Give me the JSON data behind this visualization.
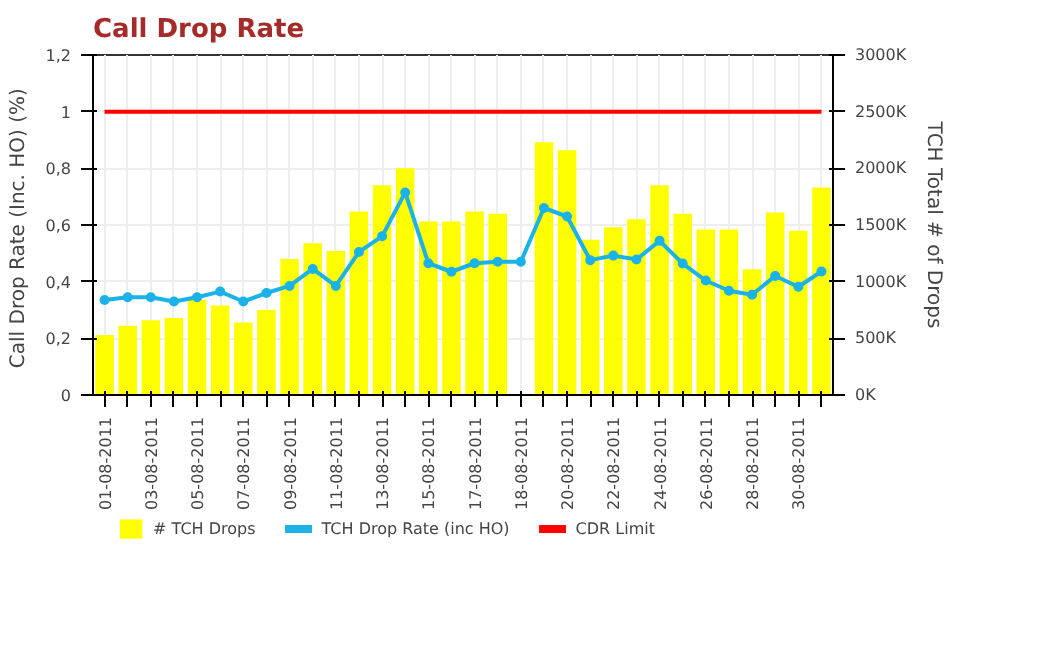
{
  "chart_data": {
    "type": "bar",
    "title": "Call Drop Rate",
    "ylabel": "Call Drop Rate (Inc. HO)  (%)",
    "y2label": "TCH Total # of Drops",
    "categories": [
      "01-08-2011",
      null,
      "03-08-2011",
      null,
      "05-08-2011",
      null,
      "07-08-2011",
      null,
      "09-08-2011",
      null,
      "11-08-2011",
      null,
      "13-08-2011",
      null,
      "15-08-2011",
      null,
      "17-08-2011",
      null,
      "18-08-2011",
      null,
      "20-08-2011",
      null,
      "22-08-2011",
      null,
      "24-08-2011",
      null,
      "26-08-2011",
      null,
      "28-08-2011",
      null,
      "30-08-2011",
      null
    ],
    "series": [
      {
        "name": "# TCH Drops",
        "axis": "y2",
        "color": "#ffff00",
        "values": [
          530,
          610,
          660,
          680,
          840,
          790,
          640,
          750,
          1200,
          1340,
          1270,
          1620,
          1850,
          2000,
          1530,
          1530,
          1620,
          1600,
          null,
          2230,
          2160,
          1370,
          1480,
          1550,
          1850,
          1600,
          1460,
          1460,
          1110,
          1610,
          1450,
          1830
        ]
      },
      {
        "name": "TCH Drop Rate (inc HO)",
        "type": "line",
        "marker": "circle",
        "color": "#1ab2e8",
        "values": [
          0.335,
          0.345,
          0.345,
          0.33,
          0.345,
          0.365,
          0.33,
          0.36,
          0.385,
          0.445,
          0.385,
          0.505,
          0.56,
          0.715,
          0.465,
          0.435,
          0.465,
          0.47,
          0.47,
          0.66,
          0.63,
          0.476,
          0.492,
          0.478,
          0.544,
          0.464,
          0.404,
          0.368,
          0.354,
          0.42,
          0.382,
          0.436
        ]
      },
      {
        "name": "CDR Limit",
        "type": "line",
        "marker": "none",
        "color": "#ff0000",
        "values": [
          1,
          1,
          1,
          1,
          1,
          1,
          1,
          1,
          1,
          1,
          1,
          1,
          1,
          1,
          1,
          1,
          1,
          1,
          1,
          1,
          1,
          1,
          1,
          1,
          1,
          1,
          1,
          1,
          1,
          1,
          1,
          1
        ]
      }
    ],
    "ylim": [
      0,
      1.2
    ],
    "yticks": [
      0,
      {
        "value": 0.2,
        "label": "0,2"
      },
      {
        "value": 0.4,
        "label": "0,4"
      },
      {
        "value": 0.6,
        "label": "0,6"
      },
      {
        "value": 0.8,
        "label": "0,8"
      },
      1,
      {
        "value": 1.2,
        "label": "1,2"
      }
    ],
    "y2lim": [
      0,
      3000
    ],
    "y2ticks": [
      {
        "value": 0,
        "label": "0K"
      },
      {
        "value": 500,
        "label": "500K"
      },
      {
        "value": 1000,
        "label": "1000K"
      },
      {
        "value": 1500,
        "label": "1500K"
      },
      {
        "value": 2000,
        "label": "2000K"
      },
      {
        "value": 2500,
        "label": "2500K"
      },
      {
        "value": 3000,
        "label": "3000K"
      }
    ],
    "grid": true,
    "legend": "bottom"
  }
}
